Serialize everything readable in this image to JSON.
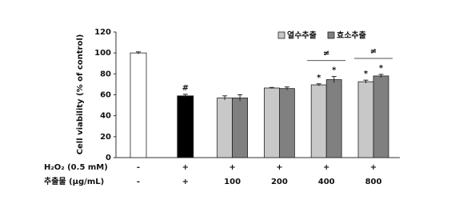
{
  "chart_data": {
    "type": "bar",
    "y_label": "Cell viability (% of control)",
    "ylim": [
      0,
      120
    ],
    "yticks": [
      0,
      20,
      40,
      60,
      80,
      100,
      120
    ],
    "row_labels": [
      "H₂O₂ (0.5 mM)",
      "추출물 (μg/mL)"
    ],
    "rows": [
      [
        "-",
        "+",
        "+",
        "+",
        "+",
        "+"
      ],
      [
        "-",
        "+",
        "100",
        "200",
        "400",
        "800"
      ]
    ],
    "single": {
      "values": [
        100,
        59,
        null,
        null,
        null,
        null
      ],
      "errors": [
        1,
        1.5,
        null,
        null,
        null,
        null
      ],
      "colors": [
        "#ffffff",
        "#000000",
        null,
        null,
        null,
        null
      ],
      "labels": [
        null,
        "#",
        null,
        null,
        null,
        null
      ]
    },
    "series": [
      {
        "name": "열수추출",
        "color": "#c8c8c8",
        "values": [
          null,
          null,
          57,
          66.5,
          69.5,
          72.5
        ],
        "errors": [
          null,
          null,
          2,
          0.5,
          1,
          1.5
        ],
        "labels": [
          null,
          null,
          null,
          null,
          "*",
          "*"
        ]
      },
      {
        "name": "효소추출",
        "color": "#808080",
        "values": [
          null,
          null,
          57,
          66,
          74.5,
          78
        ],
        "errors": [
          null,
          null,
          3,
          1.5,
          3,
          1.5
        ],
        "labels": [
          null,
          null,
          null,
          null,
          "*",
          "*"
        ]
      }
    ],
    "bracket_labels": [
      null,
      null,
      null,
      null,
      "≠",
      "≠"
    ]
  }
}
